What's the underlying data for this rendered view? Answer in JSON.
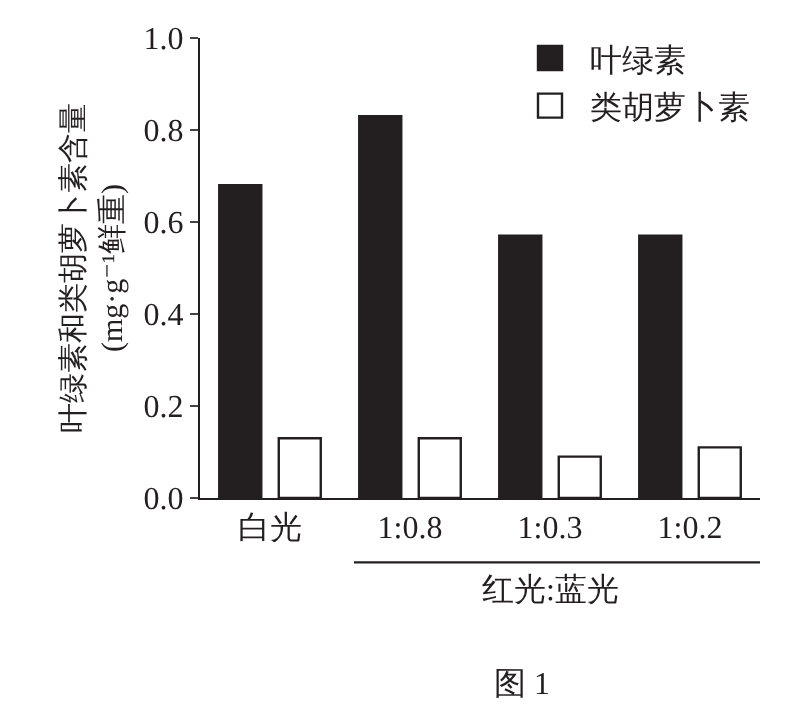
{
  "chart_data": {
    "type": "bar",
    "categories": [
      "白光",
      "1:0.8",
      "1:0.3",
      "1:0.2"
    ],
    "series": [
      {
        "name": "叶绿素",
        "color": "#231f20",
        "values": [
          0.68,
          0.83,
          0.57,
          0.57
        ]
      },
      {
        "name": "类胡萝卜素",
        "color": "#ffffff",
        "values": [
          0.13,
          0.13,
          0.09,
          0.11
        ]
      }
    ],
    "ylabel": "叶绿素和类胡萝卜素含量\n(mg·g⁻¹鲜重)",
    "xlabel": "红光:蓝光",
    "annotations": [
      "图 1"
    ],
    "ylim": [
      0,
      1
    ],
    "yticks": [
      {
        "value": 0,
        "label": "0.0"
      },
      0.2,
      0.4,
      0.6,
      0.8,
      {
        "value": 1,
        "label": "1.0"
      }
    ],
    "legend": "top right"
  }
}
